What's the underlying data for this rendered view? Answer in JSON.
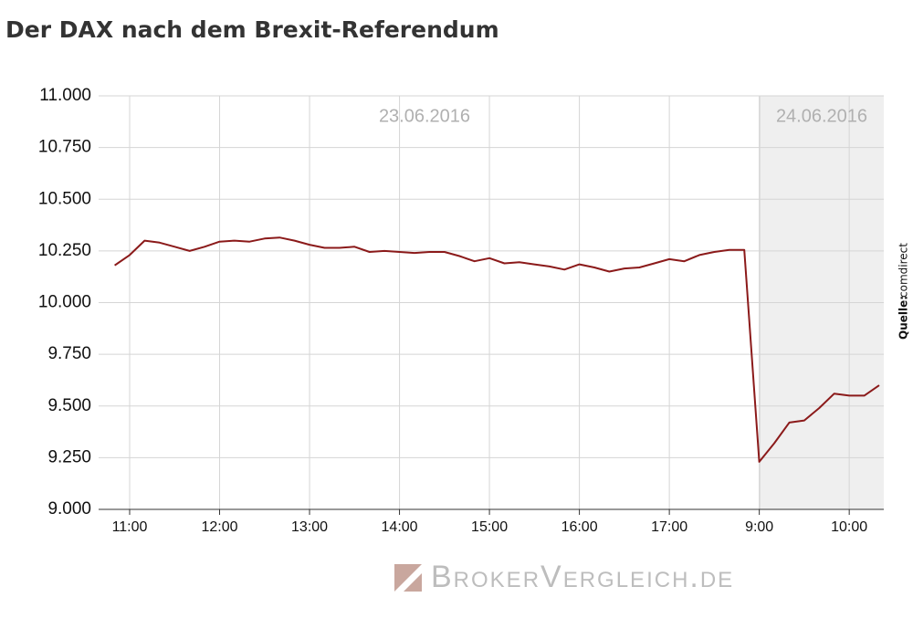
{
  "chart_data": {
    "type": "line",
    "title": "Der DAX nach dem Brexit-Referendum",
    "annotations": [
      "23.06.2016",
      "24.06.2016"
    ],
    "source_label": "Quelle:",
    "source": "comdirect",
    "watermark": "BrokerVergleich.de",
    "categories": [
      null,
      "11:00",
      null,
      null,
      null,
      null,
      null,
      "12:00",
      null,
      null,
      null,
      null,
      null,
      "13:00",
      null,
      null,
      null,
      null,
      null,
      "14:00",
      null,
      null,
      null,
      null,
      null,
      "15:00",
      null,
      null,
      null,
      null,
      null,
      "16:00",
      null,
      null,
      null,
      null,
      null,
      "17:00",
      null,
      null,
      null,
      null,
      null,
      "9:00",
      null,
      null,
      null,
      null,
      null,
      "10:00",
      null,
      null
    ],
    "series": [
      {
        "name": "DAX",
        "color": "#8b1a1a",
        "values": [
          10180,
          10230,
          10300,
          10290,
          10270,
          10250,
          10270,
          10295,
          10300,
          10295,
          10310,
          10315,
          10300,
          10280,
          10265,
          10265,
          10270,
          10245,
          10250,
          10245,
          10240,
          10245,
          10245,
          10225,
          10200,
          10215,
          10190,
          10195,
          10185,
          10175,
          10160,
          10185,
          10170,
          10150,
          10165,
          10170,
          10190,
          10210,
          10200,
          10230,
          10245,
          10255,
          10255,
          9230,
          9320,
          9420,
          9430,
          9490,
          9560,
          9550,
          9550,
          9600
        ]
      }
    ],
    "ylim": [
      9000,
      11000
    ],
    "yticks": [
      {
        "value": 9000,
        "label": "9.000"
      },
      {
        "value": 9250,
        "label": "9.250"
      },
      {
        "value": 9500,
        "label": "9.500"
      },
      {
        "value": 9750,
        "label": "9.750"
      },
      {
        "value": 10000,
        "label": "10.000"
      },
      {
        "value": 10250,
        "label": "10.250"
      },
      {
        "value": 10500,
        "label": "10.500"
      },
      {
        "value": 10750,
        "label": "10.750"
      },
      {
        "value": 11000,
        "label": "11.000"
      }
    ],
    "grid": true
  }
}
